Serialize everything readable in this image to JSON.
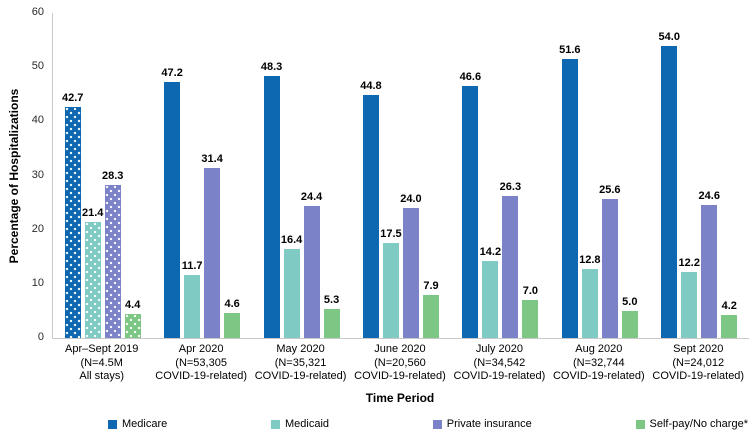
{
  "chart_data": {
    "type": "bar",
    "title": "",
    "ylabel": "Percentage of Hospitalizations",
    "xlabel": "Time Period",
    "ylim": [
      0,
      60
    ],
    "yticks": [
      0,
      10,
      20,
      30,
      40,
      50,
      60
    ],
    "grid": false,
    "legend_position": "bottom",
    "value_label_format": "one_decimal",
    "categories": [
      {
        "lines": [
          "Apr–Sept 2019",
          "(N=4.5M",
          "All stays)"
        ],
        "patterned": true
      },
      {
        "lines": [
          "Apr 2020",
          "(N=53,305",
          "COVID-19-related)"
        ],
        "patterned": false
      },
      {
        "lines": [
          "May 2020",
          "(N=35,321",
          "COVID-19-related)"
        ],
        "patterned": false
      },
      {
        "lines": [
          "June 2020",
          "(N=20,560",
          "COVID-19-related)"
        ],
        "patterned": false
      },
      {
        "lines": [
          "July 2020",
          "(N=34,542",
          "COVID-19-related)"
        ],
        "patterned": false
      },
      {
        "lines": [
          "Aug 2020",
          "(N=32,744",
          "COVID-19-related)"
        ],
        "patterned": false
      },
      {
        "lines": [
          "Sept 2020",
          "(N=24,012",
          "COVID-19-related)"
        ],
        "patterned": false
      }
    ],
    "series": [
      {
        "name": "Medicare",
        "color": "#0d68b1",
        "values": [
          42.7,
          47.2,
          48.3,
          44.8,
          46.6,
          51.6,
          54.0
        ]
      },
      {
        "name": "Medicaid",
        "color": "#7fcbc3",
        "values": [
          21.4,
          11.7,
          16.4,
          17.5,
          14.2,
          12.8,
          12.2
        ]
      },
      {
        "name": "Private insurance",
        "color": "#7b82c8",
        "values": [
          28.3,
          31.4,
          24.4,
          24.0,
          26.3,
          25.6,
          24.6
        ]
      },
      {
        "name": "Self-pay/No charge*",
        "color": "#7cc783",
        "values": [
          4.4,
          4.6,
          5.3,
          7.9,
          7.0,
          5.0,
          4.2
        ]
      }
    ],
    "axis_color": "#c9c9c9"
  }
}
